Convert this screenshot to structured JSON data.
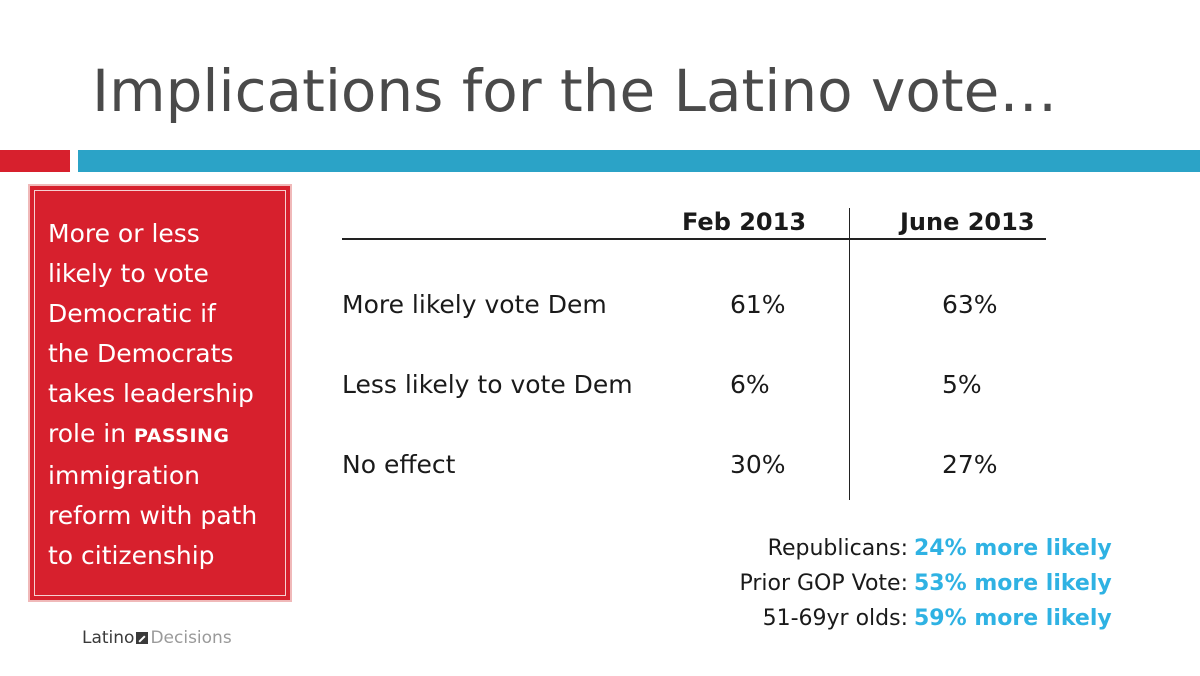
{
  "title": "Implications for the Latino vote…",
  "colors": {
    "red": "#d7202d",
    "blue": "#2ba3c7",
    "highlight": "#2fb2e3"
  },
  "sidebar": {
    "lines": [
      "More or less",
      "likely to vote",
      "Democratic if",
      "the Democrats",
      "takes leadership",
      "role in",
      "immigration",
      "reform with path",
      "to citizenship"
    ],
    "emphasis": "PASSING"
  },
  "chart_data": {
    "type": "table",
    "columns": [
      "Feb 2013",
      "June 2013"
    ],
    "rows": [
      {
        "label": "More likely vote Dem",
        "values": [
          "61%",
          "63%"
        ]
      },
      {
        "label": "Less likely to vote Dem",
        "values": [
          "6%",
          "5%"
        ]
      },
      {
        "label": "No effect",
        "values": [
          "30%",
          "27%"
        ]
      }
    ],
    "annotations": [
      {
        "label": "Republicans:",
        "value": "24% more likely"
      },
      {
        "label": "Prior GOP Vote:",
        "value": "53% more likely"
      },
      {
        "label": "51-69yr olds:",
        "value": "59% more likely"
      }
    ]
  },
  "logo": {
    "part1": "Latino",
    "part2": "Decisions"
  }
}
